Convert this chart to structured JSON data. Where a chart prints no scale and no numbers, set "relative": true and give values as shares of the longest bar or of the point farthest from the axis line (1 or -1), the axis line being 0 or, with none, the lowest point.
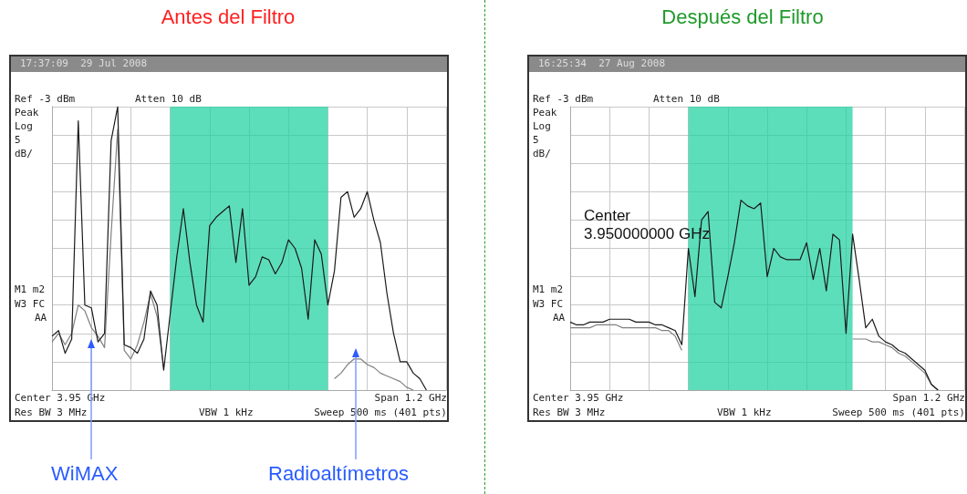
{
  "chart_data": [
    {
      "type": "line",
      "title": "Antes del Filtro",
      "relative": true,
      "grid": true,
      "categories": [
        null,
        null,
        null,
        null,
        null,
        null,
        null,
        null,
        null,
        null,
        null,
        null,
        null,
        null,
        null,
        null,
        null,
        null,
        null,
        null,
        null,
        null,
        null,
        null,
        null,
        null,
        null,
        null,
        null,
        null,
        null,
        null,
        null,
        null,
        null,
        null,
        null,
        null,
        null,
        null,
        null,
        null,
        null,
        null,
        null,
        null,
        null,
        null,
        null,
        null,
        null,
        null,
        null,
        null,
        null,
        null,
        null,
        null,
        null,
        null,
        null
      ],
      "series": [
        {
          "type": "area",
          "color": "#1fd1a0",
          "values": [
            null,
            null,
            null,
            null,
            null,
            null,
            null,
            null,
            null,
            null,
            null,
            null,
            null,
            null,
            null,
            null,
            null,
            null,
            1,
            1,
            1,
            1,
            1,
            1,
            1,
            1,
            1,
            1,
            1,
            1,
            1,
            1,
            1,
            1,
            1,
            1,
            1,
            1,
            1,
            1,
            1,
            1,
            1,
            null,
            null,
            null,
            null,
            null,
            null,
            null,
            null,
            null,
            null,
            null,
            null,
            null,
            null,
            null,
            null,
            null,
            null
          ]
        },
        {
          "color": "#808080",
          "values": [
            0.17,
            0.2,
            0.16,
            0.2,
            0.3,
            0.28,
            0.22,
            0.19,
            0.15,
            0.55,
            0.92,
            0.14,
            0.11,
            0.16,
            0.24,
            0.34,
            0.26,
            0.08,
            null,
            null,
            null,
            null,
            null,
            null,
            null,
            null,
            null,
            null,
            null,
            null,
            null,
            null,
            null,
            null,
            null,
            null,
            null,
            null,
            null,
            null,
            null,
            null,
            null,
            0.04,
            0.06,
            0.09,
            0.11,
            0.11,
            0.09,
            0.08,
            0.06,
            0.05,
            0.04,
            0.03,
            0.01,
            0.0,
            null,
            null,
            null,
            null,
            null
          ]
        },
        {
          "color": "#1a1a1a",
          "values": [
            0.19,
            0.21,
            0.13,
            0.18,
            0.95,
            0.3,
            0.29,
            0.17,
            0.2,
            0.88,
            1.0,
            0.16,
            0.15,
            0.13,
            0.18,
            0.35,
            0.3,
            0.07,
            0.27,
            0.47,
            0.64,
            0.45,
            0.3,
            0.24,
            0.58,
            0.61,
            0.63,
            0.65,
            0.45,
            0.64,
            0.37,
            0.4,
            0.47,
            0.46,
            0.41,
            0.45,
            0.53,
            0.5,
            0.43,
            0.25,
            0.53,
            0.48,
            0.3,
            0.42,
            0.68,
            0.7,
            0.61,
            0.64,
            0.7,
            0.6,
            0.52,
            0.34,
            0.2,
            0.1,
            0.1,
            0.06,
            0.04,
            0.0,
            null,
            null,
            null
          ]
        }
      ],
      "annotations": [
        "17:37:09  29 Jul 2008",
        "Ref -3 dBm",
        "Atten 10 dB",
        "Peak",
        "Log",
        "5",
        "dB/",
        "M1 m2",
        "W3 FC",
        "AA",
        "Center 3.95 GHz",
        "Span 1.2 GHz",
        "Res BW 3 MHz",
        "VBW 1 kHz",
        "Sweep 500 ms (401 pts)",
        "WiMAX",
        "Radioaltímetros"
      ]
    },
    {
      "type": "line",
      "title": "Después del Filtro",
      "relative": true,
      "grid": true,
      "categories": [
        null,
        null,
        null,
        null,
        null,
        null,
        null,
        null,
        null,
        null,
        null,
        null,
        null,
        null,
        null,
        null,
        null,
        null,
        null,
        null,
        null,
        null,
        null,
        null,
        null,
        null,
        null,
        null,
        null,
        null,
        null,
        null,
        null,
        null,
        null,
        null,
        null,
        null,
        null,
        null,
        null,
        null,
        null,
        null,
        null,
        null,
        null,
        null,
        null,
        null,
        null,
        null,
        null,
        null,
        null,
        null,
        null,
        null,
        null,
        null,
        null
      ],
      "series": [
        {
          "type": "area",
          "color": "#1fd1a0",
          "values": [
            null,
            null,
            null,
            null,
            null,
            null,
            null,
            null,
            null,
            null,
            null,
            null,
            null,
            null,
            null,
            null,
            null,
            null,
            1,
            1,
            1,
            1,
            1,
            1,
            1,
            1,
            1,
            1,
            1,
            1,
            1,
            1,
            1,
            1,
            1,
            1,
            1,
            1,
            1,
            1,
            1,
            1,
            1,
            1,
            null,
            null,
            null,
            null,
            null,
            null,
            null,
            null,
            null,
            null,
            null,
            null,
            null,
            null,
            null,
            null,
            null
          ]
        },
        {
          "color": "#808080",
          "values": [
            0.22,
            0.22,
            0.22,
            0.22,
            0.23,
            0.23,
            0.23,
            0.23,
            0.22,
            0.22,
            0.22,
            0.22,
            0.22,
            0.22,
            0.21,
            0.21,
            0.19,
            0.14,
            null,
            null,
            null,
            null,
            null,
            null,
            null,
            null,
            null,
            null,
            null,
            null,
            null,
            null,
            null,
            null,
            null,
            null,
            null,
            null,
            null,
            null,
            null,
            null,
            null,
            0.18,
            0.18,
            0.18,
            0.17,
            0.17,
            0.16,
            0.15,
            0.13,
            0.12,
            0.1,
            0.08,
            0.06,
            0.02,
            0.0,
            null,
            null,
            null,
            null
          ]
        },
        {
          "color": "#1a1a1a",
          "values": [
            0.24,
            0.23,
            0.23,
            0.24,
            0.24,
            0.24,
            0.25,
            0.25,
            0.25,
            0.25,
            0.24,
            0.24,
            0.24,
            0.23,
            0.23,
            0.22,
            0.21,
            0.16,
            0.5,
            0.33,
            0.6,
            0.63,
            0.31,
            0.29,
            0.4,
            0.52,
            0.67,
            0.65,
            0.64,
            0.66,
            0.4,
            0.5,
            0.47,
            0.46,
            0.46,
            0.46,
            0.52,
            0.39,
            0.5,
            0.35,
            0.55,
            0.53,
            0.2,
            0.55,
            0.39,
            0.22,
            0.25,
            0.19,
            0.17,
            0.16,
            0.14,
            0.13,
            0.11,
            0.09,
            0.07,
            0.02,
            0.0,
            null,
            null,
            null,
            null
          ]
        }
      ],
      "annotations": [
        "16:25:34  27 Aug 2008",
        "Ref -3 dBm",
        "Atten 10 dB",
        "Peak",
        "Log",
        "5",
        "dB/",
        "M1 m2",
        "W3 FC",
        "AA",
        "Center 3.95 GHz",
        "Span 1.2 GHz",
        "Res BW 3 MHz",
        "VBW 1 kHz",
        "Sweep 500 ms (401 pts)",
        "Center",
        "3.950000000 GHz"
      ]
    }
  ]
}
